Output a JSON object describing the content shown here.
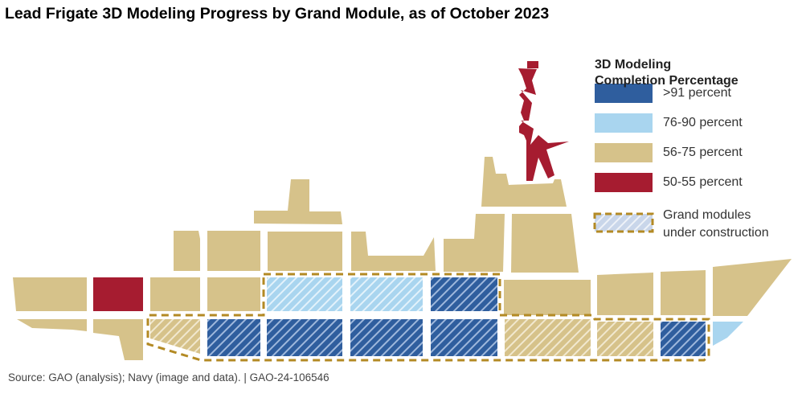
{
  "title": "Lead Frigate 3D Modeling Progress by Grand Module, as of October 2023",
  "legend": {
    "title_line1": "3D Modeling",
    "title_line2": "Completion Percentage",
    "items": [
      {
        "label": ">91 percent",
        "color": "#2F5E9E"
      },
      {
        "label": "76-90 percent",
        "color": "#A9D5EF"
      },
      {
        "label": "56-75 percent",
        "color": "#D6C28A"
      },
      {
        "label": "50-55 percent",
        "color": "#A61C30"
      }
    ],
    "construction_line1": "Grand modules",
    "construction_line2": "under construction",
    "construction_border_color": "#B38A24"
  },
  "source": "Source: GAO (analysis); Navy (image and data).  |  GAO-24-106546"
}
